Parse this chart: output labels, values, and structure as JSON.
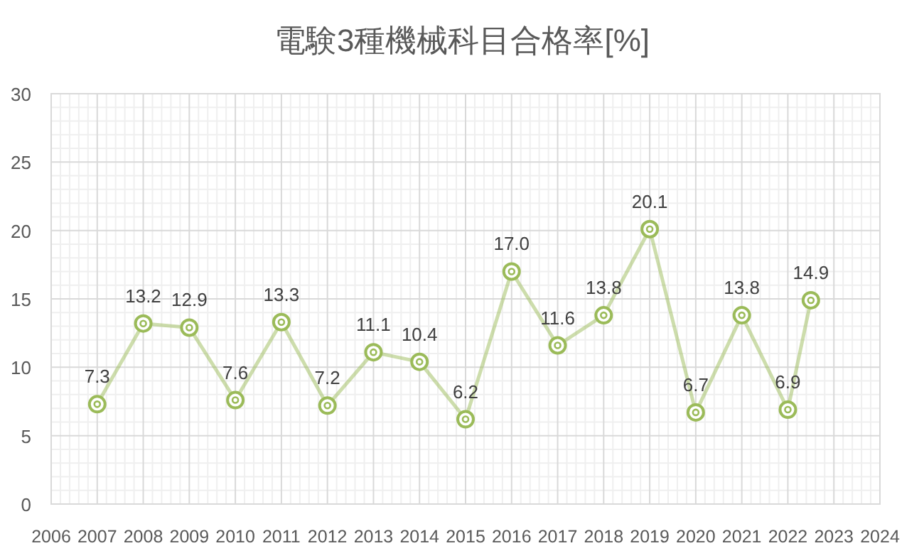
{
  "chart_data": {
    "type": "line",
    "title": "電験3種機械科目合格率[%]",
    "x": [
      2007,
      2008,
      2009,
      2010,
      2011,
      2012,
      2013,
      2014,
      2015,
      2016,
      2017,
      2018,
      2019,
      2020,
      2021,
      2022,
      2022.5
    ],
    "series": [
      {
        "color": "#9bbb59",
        "values": [
          7.3,
          13.2,
          12.9,
          7.6,
          13.3,
          7.2,
          11.1,
          10.4,
          6.2,
          17.0,
          11.6,
          13.8,
          20.1,
          6.7,
          13.8,
          6.9,
          14.9
        ],
        "value_labels": [
          "7.3",
          "13.2",
          "12.9",
          "7.6",
          "13.3",
          "7.2",
          "11.1",
          "10.4",
          "6.2",
          "17.0",
          "11.6",
          "13.8",
          "20.1",
          "6.7",
          "13.8",
          "6.9",
          "14.9"
        ]
      }
    ],
    "xlim": [
      2006,
      2024
    ],
    "xticks": [
      2006,
      2007,
      2008,
      2009,
      2010,
      2011,
      2012,
      2013,
      2014,
      2015,
      2016,
      2017,
      2018,
      2019,
      2020,
      2021,
      2022,
      2023,
      2024
    ],
    "ylim": [
      0,
      30
    ],
    "yticks": [
      0,
      5,
      10,
      15,
      20,
      25,
      30
    ],
    "grid": true,
    "marker": "circle"
  }
}
